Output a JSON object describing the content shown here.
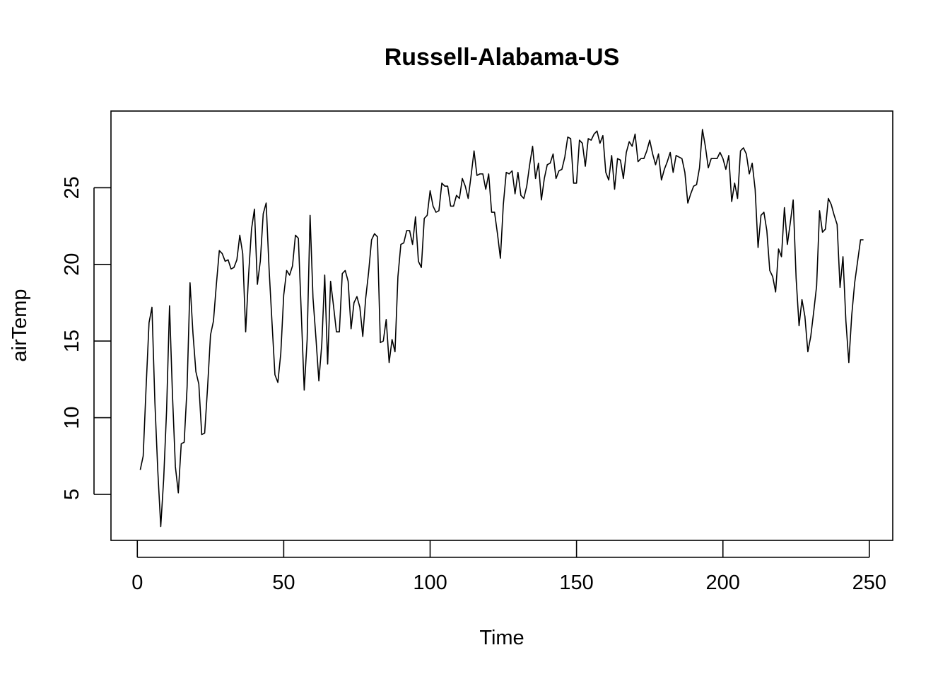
{
  "chart_data": {
    "type": "line",
    "title": "Russell-Alabama-US",
    "xlabel": "Time",
    "ylabel": "airTemp",
    "x_ticks": [
      0,
      50,
      100,
      150,
      200,
      250
    ],
    "y_ticks": [
      5,
      10,
      15,
      20,
      25
    ],
    "xlim": [
      -9,
      258
    ],
    "ylim": [
      2,
      30
    ],
    "colors": {
      "line": "#000000",
      "frame": "#000000",
      "background": "#ffffff"
    },
    "series": [
      {
        "x_start": 1,
        "values": [
          6.6,
          7.5,
          12,
          16.2,
          17.2,
          11,
          6.5,
          2.9,
          6,
          10.5,
          17.3,
          11.5,
          6.8,
          5.1,
          8.3,
          8.4,
          12,
          18.8,
          15.5,
          13,
          12.2,
          8.9,
          9,
          12,
          15.4,
          16.3,
          18.7,
          20.9,
          20.7,
          20.2,
          20.3,
          19.7,
          19.8,
          20.3,
          21.9,
          20.7,
          15.6,
          19.3,
          22.3,
          23.6,
          18.7,
          20.2,
          23.3,
          24,
          19.7,
          16.2,
          12.8,
          12.3,
          14.2,
          18,
          19.6,
          19.3,
          19.9,
          21.9,
          21.7,
          16.8,
          11.8,
          15.1,
          23.2,
          17.8,
          15.2,
          12.4,
          14.8,
          19.3,
          13.5,
          18.9,
          17.3,
          15.6,
          15.6,
          19.4,
          19.6,
          18.9,
          15.8,
          17.5,
          17.9,
          17.2,
          15.3,
          17.8,
          19.5,
          21.6,
          22,
          21.8,
          14.9,
          15,
          16.4,
          13.6,
          15.1,
          14.3,
          19.2,
          21.3,
          21.4,
          22.2,
          22.2,
          21.3,
          23.1,
          20.2,
          19.8,
          23,
          23.2,
          24.8,
          23.8,
          23.4,
          23.5,
          25.3,
          25.1,
          25.1,
          23.8,
          23.8,
          24.5,
          24.3,
          25.6,
          25.1,
          24.3,
          25.8,
          27.4,
          25.8,
          25.9,
          25.9,
          24.9,
          25.9,
          23.4,
          23.4,
          22,
          20.4,
          23.9,
          26,
          25.9,
          26.1,
          24.6,
          26,
          24.5,
          24.3,
          25.1,
          26.5,
          27.7,
          25.6,
          26.6,
          24.2,
          25.6,
          26.5,
          26.6,
          27.2,
          25.6,
          26.1,
          26.2,
          27,
          28.3,
          28.2,
          25.3,
          25.3,
          28.1,
          27.9,
          26.4,
          28.2,
          28.1,
          28.5,
          28.7,
          27.9,
          28.4,
          26,
          25.5,
          27.1,
          24.9,
          26.9,
          26.8,
          25.6,
          27.3,
          28,
          27.7,
          28.5,
          26.7,
          26.9,
          26.9,
          27.4,
          28.1,
          27.2,
          26.5,
          27.2,
          25.5,
          26.2,
          26.7,
          27.3,
          26,
          27.1,
          27,
          26.9,
          26,
          24,
          24.6,
          25.1,
          25.2,
          26.3,
          28.8,
          27.7,
          26.3,
          26.9,
          26.9,
          26.9,
          27.3,
          26.9,
          26.2,
          27.1,
          24.1,
          25.3,
          24.3,
          27.4,
          27.6,
          27.2,
          25.9,
          26.6,
          24.9,
          21.1,
          23.2,
          23.4,
          22.2,
          19.6,
          19.2,
          18.2,
          21,
          20.5,
          23.7,
          21.3,
          22.7,
          24.2,
          19.1,
          16,
          17.7,
          16.6,
          14.3,
          15.3,
          16.9,
          18.6,
          23.5,
          22.1,
          22.3,
          24.3,
          23.9,
          23.2,
          22.6,
          18.5,
          20.5,
          16.3,
          13.6,
          16.7,
          18.8,
          20.2,
          21.6,
          21.6
        ]
      }
    ]
  }
}
